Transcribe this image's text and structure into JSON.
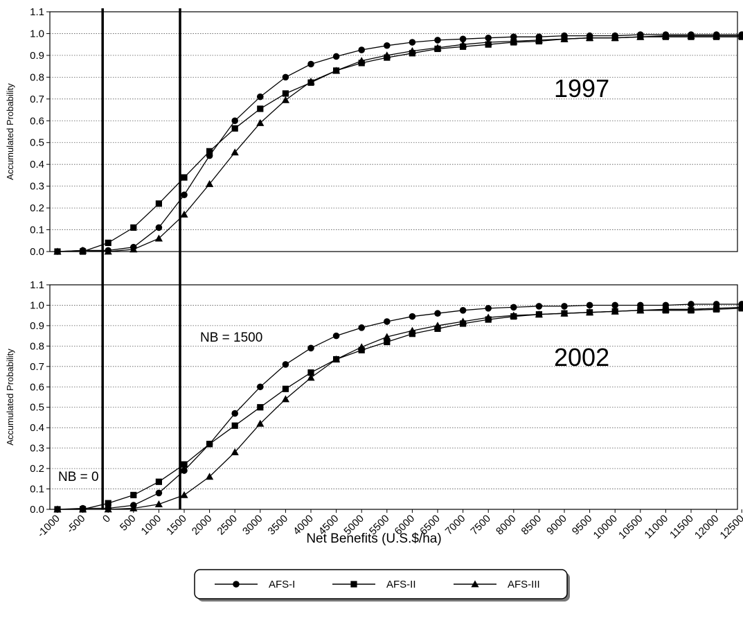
{
  "chart_data": [
    {
      "type": "line",
      "panel": "top",
      "annotation": "1997",
      "ylabel": "Accumulated Probability",
      "ylim": [
        0.0,
        1.1
      ],
      "yticks": [
        "0.0",
        "0.1",
        "0.2",
        "0.3",
        "0.4",
        "0.5",
        "0.6",
        "0.7",
        "0.8",
        "0.9",
        "1.0",
        "1.1"
      ],
      "x": [
        -1000,
        -500,
        0,
        500,
        1000,
        1500,
        2000,
        2500,
        3000,
        3500,
        4000,
        4500,
        5000,
        5500,
        6000,
        6500,
        7000,
        7500,
        8000,
        8500,
        9000,
        9500,
        10000,
        10500,
        11000,
        11500,
        12000,
        12500
      ],
      "series": [
        {
          "name": "AFS-I",
          "marker": "circle",
          "values": [
            0.0,
            0.005,
            0.005,
            0.02,
            0.11,
            0.26,
            0.44,
            0.6,
            0.71,
            0.8,
            0.86,
            0.895,
            0.925,
            0.945,
            0.96,
            0.97,
            0.975,
            0.98,
            0.985,
            0.985,
            0.99,
            0.99,
            0.99,
            0.995,
            0.995,
            0.995,
            0.995,
            0.995
          ]
        },
        {
          "name": "AFS-II",
          "marker": "square",
          "values": [
            0.0,
            0.0,
            0.04,
            0.11,
            0.22,
            0.34,
            0.46,
            0.565,
            0.655,
            0.725,
            0.775,
            0.83,
            0.865,
            0.89,
            0.91,
            0.93,
            0.94,
            0.95,
            0.96,
            0.965,
            0.975,
            0.98,
            0.98,
            0.985,
            0.985,
            0.985,
            0.985,
            0.985
          ]
        },
        {
          "name": "AFS-III",
          "marker": "triangle",
          "values": [
            0.0,
            0.005,
            0.0,
            0.01,
            0.06,
            0.17,
            0.31,
            0.455,
            0.59,
            0.695,
            0.78,
            0.83,
            0.875,
            0.9,
            0.92,
            0.935,
            0.95,
            0.96,
            0.965,
            0.97,
            0.975,
            0.98,
            0.98,
            0.985,
            0.99,
            0.99,
            0.99,
            0.99
          ]
        }
      ],
      "vlines": [
        0,
        1500
      ]
    },
    {
      "type": "line",
      "panel": "bottom",
      "annotation": "2002",
      "ylabel": "Accumulated Probability",
      "xlabel": "Net Benefits (U.S.$/ha)",
      "ylim": [
        0.0,
        1.1
      ],
      "yticks": [
        "0.0",
        "0.1",
        "0.2",
        "0.3",
        "0.4",
        "0.5",
        "0.6",
        "0.7",
        "0.8",
        "0.9",
        "1.0",
        "1.1"
      ],
      "x": [
        -1000,
        -500,
        0,
        500,
        1000,
        1500,
        2000,
        2500,
        3000,
        3500,
        4000,
        4500,
        5000,
        5500,
        6000,
        6500,
        7000,
        7500,
        8000,
        8500,
        9000,
        9500,
        10000,
        10500,
        11000,
        11500,
        12000,
        12500
      ],
      "xticks": [
        "-1000",
        "-500",
        "0",
        "500",
        "1000",
        "1500",
        "2000",
        "2500",
        "3000",
        "3500",
        "4000",
        "4500",
        "5000",
        "5500",
        "6000",
        "6500",
        "7000",
        "7500",
        "8000",
        "8500",
        "9000",
        "9500",
        "10000",
        "10500",
        "11000",
        "11500",
        "12000",
        "12500"
      ],
      "series": [
        {
          "name": "AFS-I",
          "marker": "circle",
          "values": [
            0.0,
            0.005,
            0.005,
            0.02,
            0.08,
            0.19,
            0.32,
            0.47,
            0.6,
            0.71,
            0.79,
            0.85,
            0.89,
            0.92,
            0.945,
            0.96,
            0.975,
            0.985,
            0.99,
            0.995,
            0.995,
            1.0,
            1.0,
            1.0,
            1.0,
            1.005,
            1.005,
            1.005
          ]
        },
        {
          "name": "AFS-II",
          "marker": "square",
          "values": [
            0.0,
            0.0,
            0.03,
            0.07,
            0.135,
            0.22,
            0.32,
            0.41,
            0.5,
            0.59,
            0.67,
            0.735,
            0.78,
            0.82,
            0.86,
            0.885,
            0.91,
            0.93,
            0.945,
            0.955,
            0.96,
            0.965,
            0.97,
            0.975,
            0.975,
            0.975,
            0.98,
            0.985
          ]
        },
        {
          "name": "AFS-III",
          "marker": "triangle",
          "values": [
            0.0,
            0.0,
            0.0,
            0.005,
            0.025,
            0.07,
            0.16,
            0.28,
            0.42,
            0.54,
            0.645,
            0.735,
            0.795,
            0.845,
            0.875,
            0.9,
            0.92,
            0.94,
            0.95,
            0.955,
            0.96,
            0.965,
            0.97,
            0.975,
            0.98,
            0.98,
            0.985,
            0.99
          ]
        }
      ],
      "vlines": [
        0,
        1500
      ]
    }
  ],
  "annotations": {
    "nb0": "NB = 0",
    "nb1500": "NB = 1500"
  },
  "legend": {
    "items": [
      "AFS-I",
      "AFS-II",
      "AFS-III"
    ]
  }
}
